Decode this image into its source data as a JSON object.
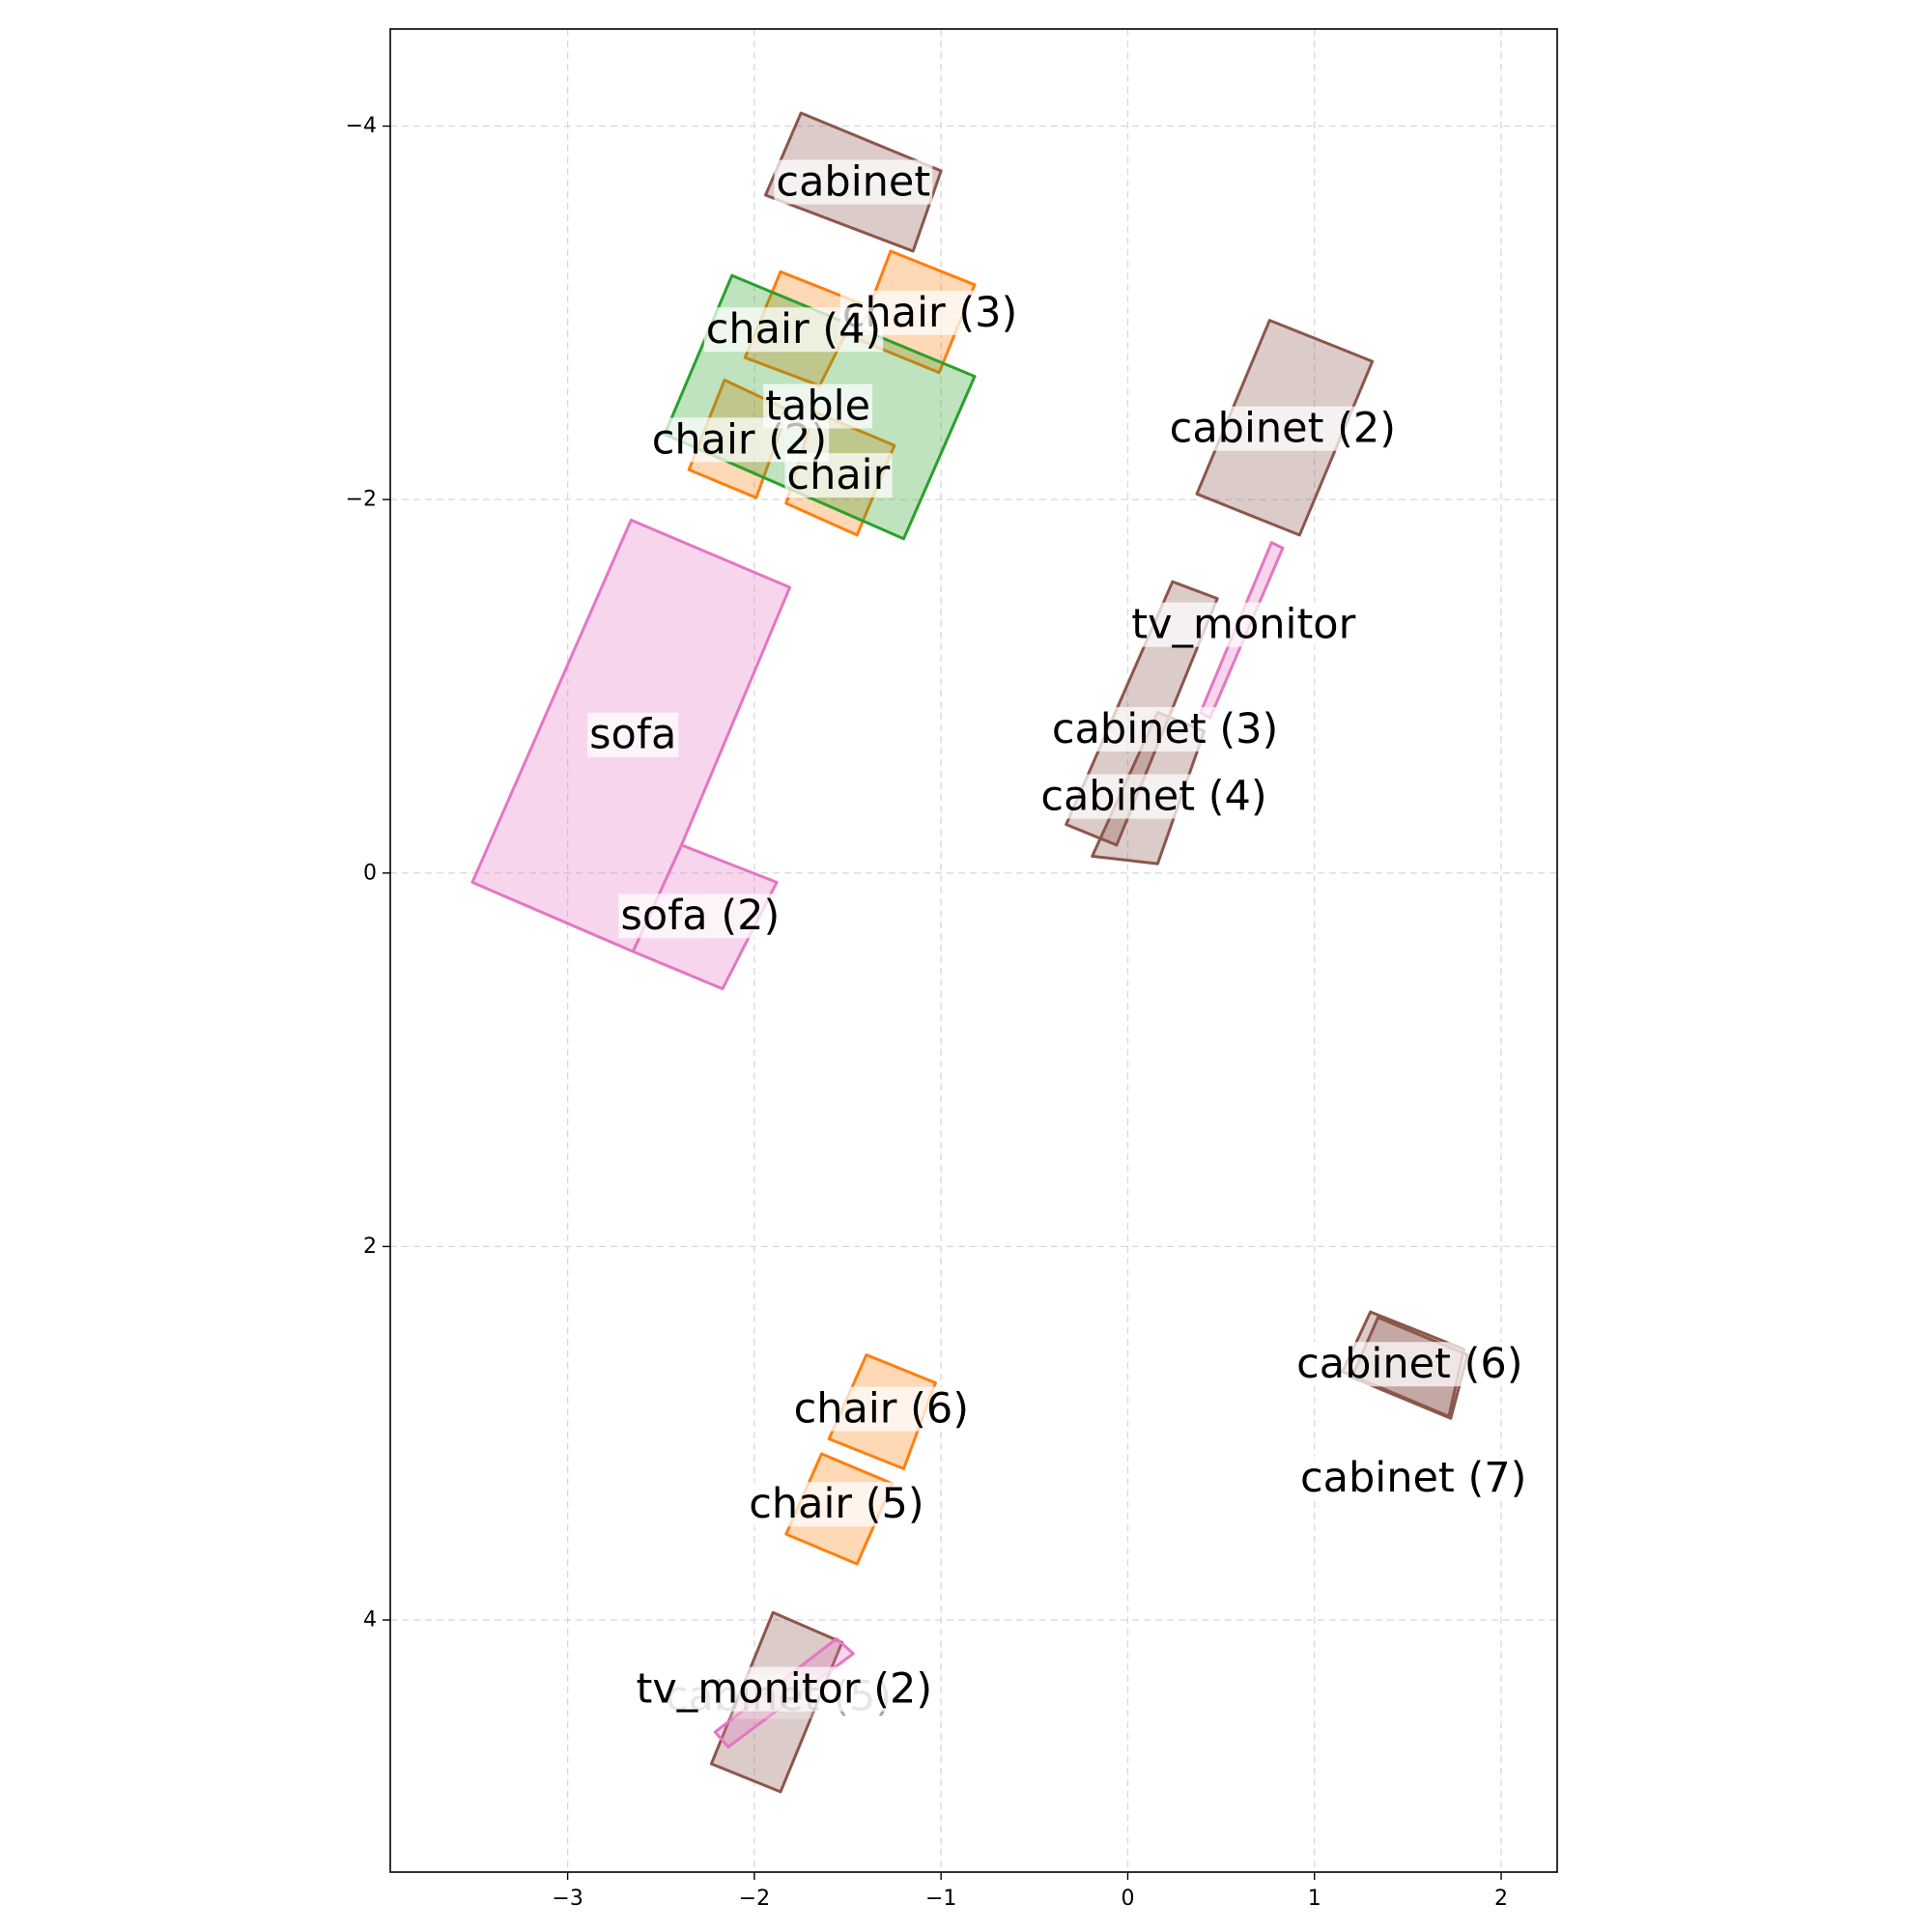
{
  "chart_data": {
    "type": "floorplan",
    "title": "",
    "xlabel": "",
    "ylabel": "",
    "xlim": [
      -3.95,
      2.3
    ],
    "ylim": [
      -4.52,
      5.35
    ],
    "y_inverted": true,
    "grid": true,
    "xticks": [
      -3,
      -2,
      -1,
      0,
      1,
      2
    ],
    "yticks": [
      -4,
      -2,
      0,
      2,
      4
    ],
    "xtick_labels": [
      "−3",
      "−2",
      "−1",
      "0",
      "1",
      "2"
    ],
    "ytick_labels": [
      "−4",
      "−2",
      "0",
      "2",
      "4"
    ],
    "category_colors": {
      "cabinet": "#8c564b",
      "chair": "#ff7f0e",
      "table": "#2ca02c",
      "sofa": "#e377c2",
      "tv_monitor": "#e377c2"
    },
    "objects": [
      {
        "label": "cabinet",
        "category": "cabinet",
        "polygon": [
          [
            -1.75,
            -4.07
          ],
          [
            -1.0,
            -3.76
          ],
          [
            -1.15,
            -3.33
          ],
          [
            -1.94,
            -3.63
          ]
        ]
      },
      {
        "label": "cabinet (2)",
        "category": "cabinet",
        "polygon": [
          [
            0.76,
            -2.96
          ],
          [
            1.31,
            -2.74
          ],
          [
            0.92,
            -1.81
          ],
          [
            0.37,
            -2.03
          ]
        ]
      },
      {
        "label": "cabinet (3)",
        "category": "cabinet",
        "polygon": [
          [
            0.24,
            -1.56
          ],
          [
            0.48,
            -1.47
          ],
          [
            -0.06,
            -0.15
          ],
          [
            -0.33,
            -0.26
          ]
        ]
      },
      {
        "label": "cabinet (4)",
        "category": "cabinet",
        "polygon": [
          [
            0.16,
            -0.86
          ],
          [
            0.41,
            -0.76
          ],
          [
            0.16,
            -0.05
          ],
          [
            -0.19,
            -0.09
          ]
        ]
      },
      {
        "label": "cabinet (6)",
        "category": "cabinet",
        "polygon": [
          [
            1.3,
            2.35
          ],
          [
            1.8,
            2.55
          ],
          [
            1.72,
            2.91
          ],
          [
            1.15,
            2.67
          ]
        ]
      },
      {
        "label": "cabinet (7)",
        "category": "cabinet",
        "polygon": [
          [
            1.34,
            2.38
          ],
          [
            1.82,
            2.58
          ],
          [
            1.73,
            2.92
          ],
          [
            1.2,
            2.7
          ]
        ]
      },
      {
        "label": "cabinet (5)",
        "category": "cabinet",
        "polygon": [
          [
            -1.9,
            3.96
          ],
          [
            -1.53,
            4.12
          ],
          [
            -1.86,
            4.92
          ],
          [
            -2.23,
            4.77
          ]
        ]
      },
      {
        "label": "chair",
        "category": "chair",
        "polygon": [
          [
            -1.68,
            -2.47
          ],
          [
            -1.25,
            -2.29
          ],
          [
            -1.45,
            -1.81
          ],
          [
            -1.83,
            -1.98
          ]
        ]
      },
      {
        "label": "chair (2)",
        "category": "chair",
        "polygon": [
          [
            -2.16,
            -2.64
          ],
          [
            -1.82,
            -2.48
          ],
          [
            -1.99,
            -2.01
          ],
          [
            -2.35,
            -2.16
          ]
        ]
      },
      {
        "label": "chair (3)",
        "category": "chair",
        "polygon": [
          [
            -1.27,
            -3.33
          ],
          [
            -0.82,
            -3.15
          ],
          [
            -1.01,
            -2.68
          ],
          [
            -1.45,
            -2.86
          ]
        ]
      },
      {
        "label": "chair (4)",
        "category": "chair",
        "polygon": [
          [
            -1.86,
            -3.22
          ],
          [
            -1.43,
            -3.05
          ],
          [
            -1.65,
            -2.61
          ],
          [
            -2.05,
            -2.76
          ]
        ]
      },
      {
        "label": "chair (6)",
        "category": "chair",
        "polygon": [
          [
            -1.4,
            2.58
          ],
          [
            -1.03,
            2.73
          ],
          [
            -1.2,
            3.19
          ],
          [
            -1.6,
            3.03
          ]
        ]
      },
      {
        "label": "chair (5)",
        "category": "chair",
        "polygon": [
          [
            -1.64,
            3.11
          ],
          [
            -1.26,
            3.27
          ],
          [
            -1.45,
            3.7
          ],
          [
            -1.83,
            3.54
          ]
        ]
      },
      {
        "label": "table",
        "category": "table",
        "polygon": [
          [
            -2.12,
            -3.2
          ],
          [
            -0.82,
            -2.66
          ],
          [
            -1.2,
            -1.79
          ],
          [
            -2.48,
            -2.35
          ]
        ]
      },
      {
        "label": "sofa",
        "category": "sofa",
        "polygon": [
          [
            -2.66,
            -1.89
          ],
          [
            -1.81,
            -1.53
          ],
          [
            -2.39,
            -0.15
          ],
          [
            -2.65,
            0.42
          ],
          [
            -3.51,
            0.05
          ]
        ]
      },
      {
        "label": "sofa (2)",
        "category": "sofa",
        "polygon": [
          [
            -2.39,
            -0.15
          ],
          [
            -1.88,
            0.05
          ],
          [
            -2.17,
            0.62
          ],
          [
            -2.65,
            0.42
          ]
        ]
      },
      {
        "label": "tv_monitor",
        "category": "tv_monitor",
        "polygon": [
          [
            0.77,
            -1.77
          ],
          [
            0.83,
            -1.74
          ],
          [
            0.44,
            -0.83
          ],
          [
            0.39,
            -0.86
          ]
        ]
      },
      {
        "label": "tv_monitor (2)",
        "category": "tv_monitor",
        "polygon": [
          [
            -1.56,
            4.1
          ],
          [
            -1.47,
            4.18
          ],
          [
            -2.14,
            4.68
          ],
          [
            -2.21,
            4.6
          ]
        ]
      }
    ],
    "labels": [
      {
        "text": "cabinet",
        "x": -1.47,
        "y": -3.7,
        "alpha": 1.0
      },
      {
        "text": "cabinet (2)",
        "x": 0.83,
        "y": -2.38,
        "alpha": 1.0
      },
      {
        "text": "cabinet (3)",
        "x": 0.2,
        "y": -0.77,
        "alpha": 1.0
      },
      {
        "text": "cabinet (4)",
        "x": 0.14,
        "y": -0.41,
        "alpha": 1.0
      },
      {
        "text": "cabinet (6)",
        "x": 1.51,
        "y": 2.63,
        "alpha": 1.0
      },
      {
        "text": "cabinet (7)",
        "x": 1.53,
        "y": 3.24,
        "alpha": 1.0
      },
      {
        "text": "cabinet (5)",
        "x": -1.87,
        "y": 4.41,
        "alpha": 0.35
      },
      {
        "text": "chair",
        "x": -1.55,
        "y": -2.13,
        "alpha": 1.0
      },
      {
        "text": "chair (2)",
        "x": -2.08,
        "y": -2.32,
        "alpha": 1.0
      },
      {
        "text": "chair (3)",
        "x": -1.06,
        "y": -3.0,
        "alpha": 1.0
      },
      {
        "text": "chair (4)",
        "x": -1.79,
        "y": -2.91,
        "alpha": 1.0
      },
      {
        "text": "chair (6)",
        "x": -1.32,
        "y": 2.87,
        "alpha": 1.0
      },
      {
        "text": "chair (5)",
        "x": -1.56,
        "y": 3.38,
        "alpha": 1.0
      },
      {
        "text": "table",
        "x": -1.66,
        "y": -2.5,
        "alpha": 1.0
      },
      {
        "text": "sofa",
        "x": -2.65,
        "y": -0.74,
        "alpha": 1.0
      },
      {
        "text": "sofa (2)",
        "x": -2.29,
        "y": 0.23,
        "alpha": 1.0
      },
      {
        "text": "tv_monitor",
        "x": 0.62,
        "y": -1.33,
        "alpha": 1.0
      },
      {
        "text": "tv_monitor (2)",
        "x": -1.84,
        "y": 4.37,
        "alpha": 1.0
      }
    ]
  }
}
